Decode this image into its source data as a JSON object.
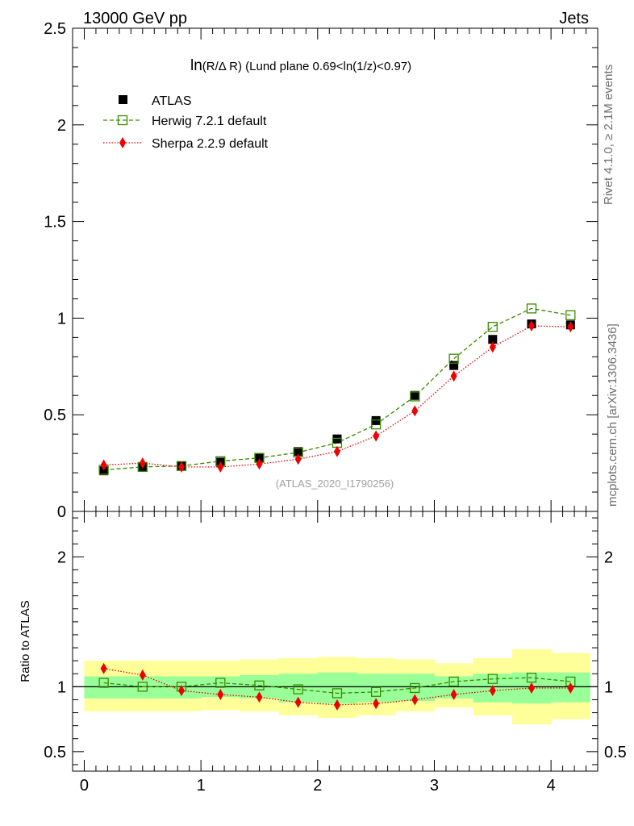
{
  "header": {
    "left_label": "13000 GeV pp",
    "right_label": "Jets"
  },
  "side_labels": {
    "rivet": "Rivet 4.1.0, ≥ 2.1M events",
    "mcplots": "mcplots.cern.ch [arXiv:1306.3436]"
  },
  "colors": {
    "atlas": "#000000",
    "herwig": "#3a8a00",
    "sherpa": "#ee0000",
    "band_inner": "#99ff99",
    "band_outer": "#ffff99"
  },
  "chart_data": [
    {
      "type": "scatter",
      "title": "ln(R/Δ R) (Lund plane 0.69<ln(1/z)<0.97)",
      "title_parts": {
        "main": "ln",
        "arg": "(R/Δ R)",
        "rest": " (Lund plane 0.69<ln(1/z)<0.97)"
      },
      "watermark": "(ATLAS_2020_I1790256)",
      "xlim": [
        -0.1,
        4.4
      ],
      "ylim": [
        0,
        2.5
      ],
      "yticks": [
        0,
        0.5,
        1,
        1.5,
        2,
        2.5
      ],
      "ytick_labels": [
        "0",
        "0.5",
        "1",
        "1.5",
        "2",
        "2.5"
      ],
      "legend_position": "top-left",
      "x": [
        0.167,
        0.5,
        0.833,
        1.167,
        1.5,
        1.833,
        2.167,
        2.5,
        2.833,
        3.167,
        3.5,
        3.833,
        4.167
      ],
      "series": [
        {
          "name": "ATLAS",
          "style": "square-filled",
          "values": [
            0.21,
            0.23,
            0.235,
            0.255,
            0.275,
            0.31,
            0.375,
            0.47,
            0.6,
            0.755,
            0.89,
            0.97,
            0.965
          ]
        },
        {
          "name": "Herwig 7.2.1 default",
          "style": "square-open-dashed",
          "values": [
            0.215,
            0.23,
            0.235,
            0.26,
            0.277,
            0.305,
            0.355,
            0.45,
            0.595,
            0.79,
            0.955,
            1.05,
            1.015
          ]
        },
        {
          "name": "Sherpa 2.2.9 default",
          "style": "diamond-dotted",
          "values": [
            0.24,
            0.25,
            0.23,
            0.23,
            0.245,
            0.27,
            0.31,
            0.39,
            0.52,
            0.7,
            0.85,
            0.96,
            0.955
          ]
        }
      ]
    },
    {
      "type": "line",
      "ylabel": "Ratio to ATLAS",
      "xlim": [
        -0.1,
        4.4
      ],
      "ylim": [
        0.35,
        2.35
      ],
      "xticks": [
        0,
        1,
        2,
        3,
        4
      ],
      "xtick_labels": [
        "0",
        "1",
        "2",
        "3",
        "4"
      ],
      "yticks": [
        0.5,
        1,
        2
      ],
      "ytick_labels": [
        "0.5",
        "1",
        "2"
      ],
      "x": [
        0.167,
        0.5,
        0.833,
        1.167,
        1.5,
        1.833,
        2.167,
        2.5,
        2.833,
        3.167,
        3.5,
        3.833,
        4.167
      ],
      "bin_edges": [
        0,
        0.333,
        0.667,
        1,
        1.333,
        1.667,
        2,
        2.333,
        2.667,
        3,
        3.333,
        3.667,
        4,
        4.333
      ],
      "bands": {
        "inner": {
          "name": "stat",
          "low": [
            0.91,
            0.91,
            0.91,
            0.92,
            0.91,
            0.88,
            0.87,
            0.88,
            0.89,
            0.91,
            0.88,
            0.87,
            0.88
          ],
          "high": [
            1.08,
            1.08,
            1.08,
            1.08,
            1.09,
            1.1,
            1.11,
            1.1,
            1.1,
            1.08,
            1.1,
            1.11,
            1.11
          ]
        },
        "outer": {
          "name": "total",
          "low": [
            0.81,
            0.81,
            0.81,
            0.82,
            0.81,
            0.78,
            0.76,
            0.78,
            0.81,
            0.84,
            0.78,
            0.71,
            0.75
          ],
          "high": [
            1.2,
            1.2,
            1.2,
            1.2,
            1.21,
            1.22,
            1.23,
            1.22,
            1.21,
            1.18,
            1.22,
            1.29,
            1.26
          ]
        }
      },
      "series": [
        {
          "name": "Herwig 7.2.1 default",
          "style": "square-open-dashed",
          "values": [
            1.03,
            1.0,
            1.0,
            1.03,
            1.01,
            0.98,
            0.95,
            0.96,
            0.99,
            1.04,
            1.06,
            1.07,
            1.04
          ]
        },
        {
          "name": "Sherpa 2.2.9 default",
          "style": "diamond-dotted",
          "values": [
            1.14,
            1.09,
            0.97,
            0.94,
            0.92,
            0.88,
            0.86,
            0.87,
            0.9,
            0.94,
            0.97,
            0.99,
            0.99
          ]
        }
      ]
    }
  ]
}
